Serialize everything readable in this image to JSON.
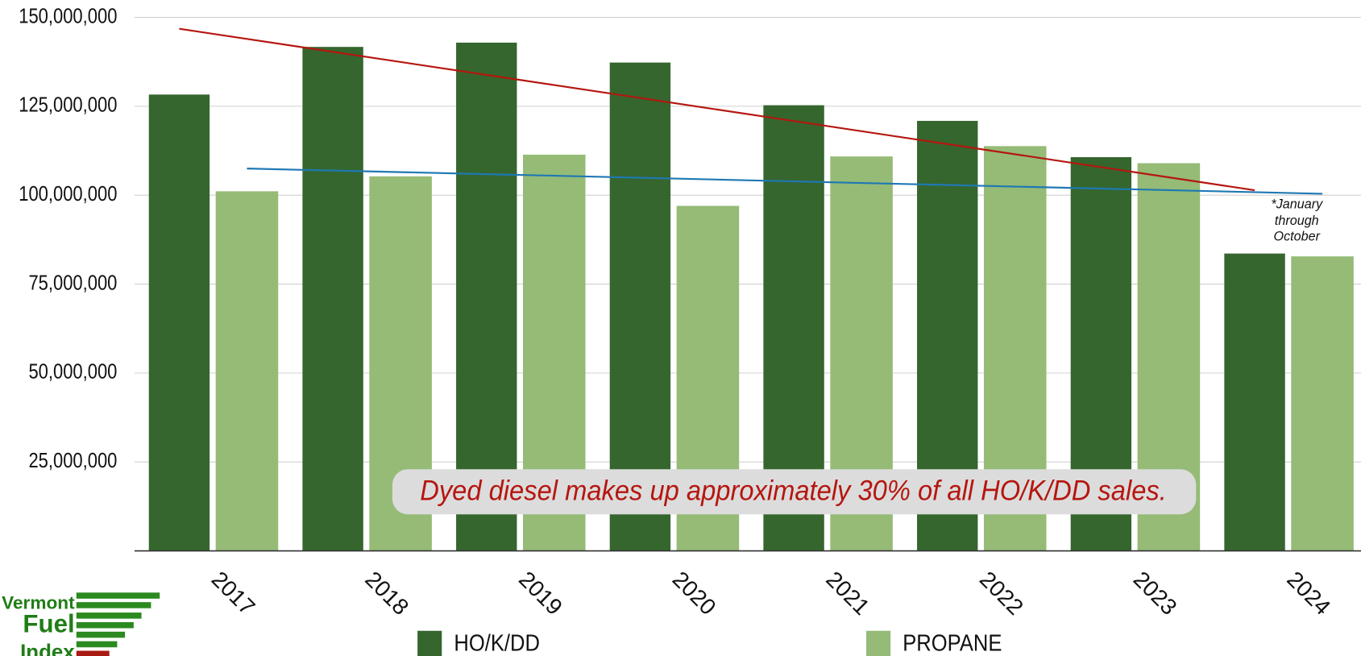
{
  "chart_data": {
    "type": "bar",
    "categories": [
      "2017",
      "2018",
      "2019",
      "2020",
      "2021",
      "2022",
      "2023",
      "2024"
    ],
    "series": [
      {
        "name": "HO/K/DD",
        "color": "#35662e",
        "values": [
          128300000,
          141700000,
          142900000,
          137300000,
          125300000,
          120900000,
          110700000,
          83600000
        ],
        "trend": [
          146800000,
          101400000
        ],
        "trend_color": "#b5160f"
      },
      {
        "name": "PROPANE",
        "color": "#95bb76",
        "values": [
          101100000,
          105300000,
          111400000,
          97000000,
          110900000,
          113800000,
          109000000,
          82800000
        ],
        "trend": [
          107500000,
          100400000
        ],
        "trend_color": "#1f78b4"
      }
    ],
    "ylim": [
      0,
      150000000
    ],
    "yticks": [
      {
        "value": 25000000,
        "label": "25,000,000"
      },
      {
        "value": 50000000,
        "label": "50,000,000"
      },
      {
        "value": 75000000,
        "label": "75,000,000"
      },
      {
        "value": 100000000,
        "label": "100,000,000"
      },
      {
        "value": 125000000,
        "label": "125,000,000"
      },
      {
        "value": 150000000,
        "label": "150,000,000"
      }
    ],
    "grid": true,
    "annotations": [
      "Dyed diesel makes up approximately 30% of all HO/K/DD sales.",
      [
        "*January",
        "through",
        "October"
      ]
    ],
    "logo": [
      "Vermont",
      "Fuel",
      "Index"
    ]
  }
}
